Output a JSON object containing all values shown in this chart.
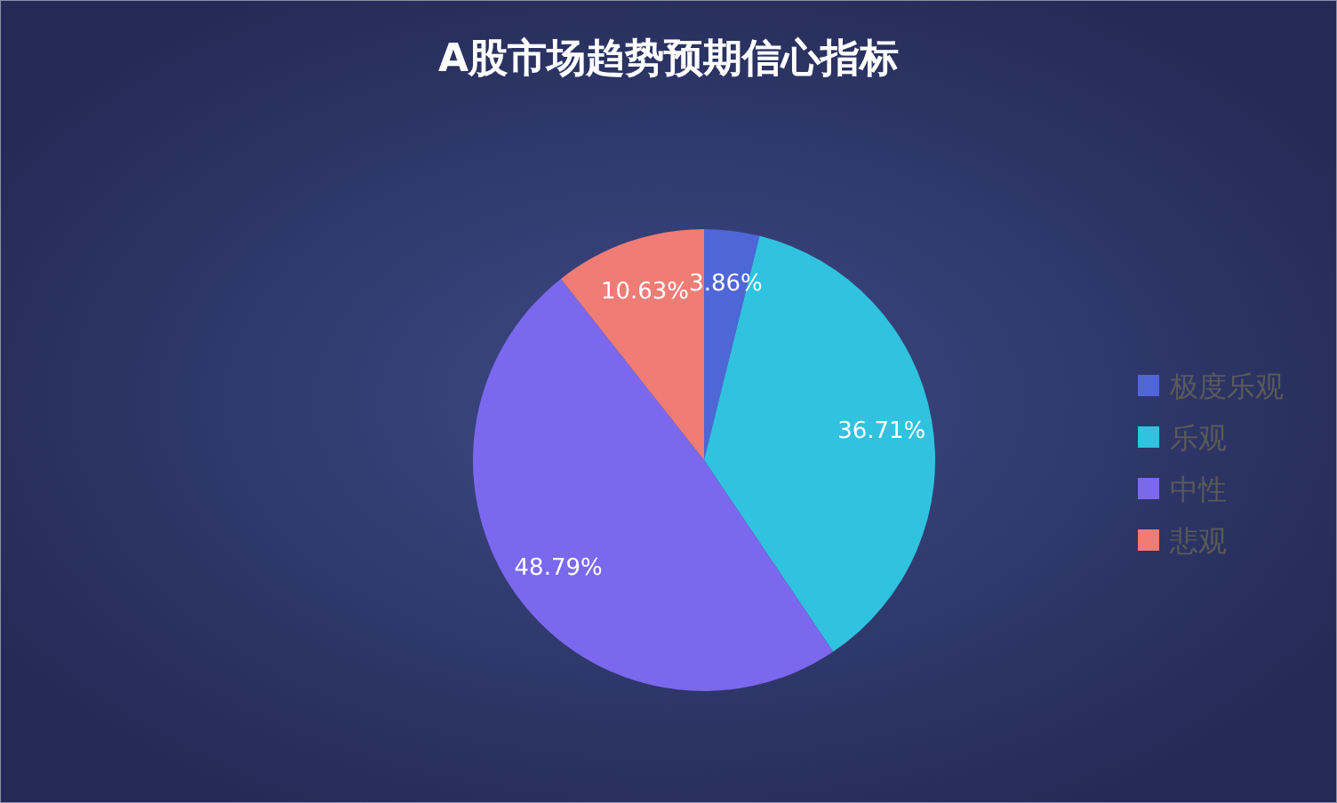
{
  "chart_data": {
    "type": "pie",
    "title": "A股市场趋势预期信心指标",
    "categories": [
      "极度乐观",
      "乐观",
      "中性",
      "悲观"
    ],
    "values": [
      3.86,
      36.71,
      48.79,
      10.63
    ],
    "colors": [
      "#4e66d6",
      "#31c2df",
      "#7b68ee",
      "#f07c76"
    ],
    "value_labels": [
      "3.86%",
      "36.71%",
      "48.79%",
      "10.63%"
    ],
    "legend": "right"
  }
}
